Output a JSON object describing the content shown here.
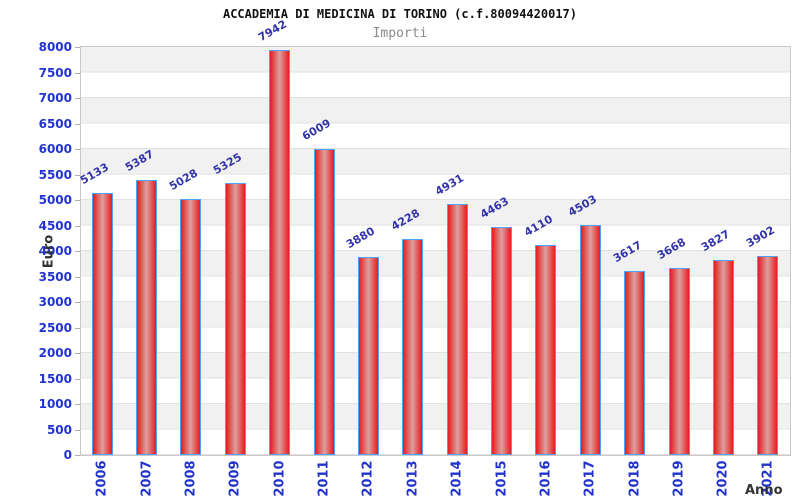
{
  "chart_data": {
    "type": "bar",
    "title": "ACCADEMIA DI MEDICINA DI TORINO (c.f.80094420017)",
    "subtitle": "Importi",
    "xlabel": "Anno",
    "ylabel": "Euro",
    "categories": [
      "2006",
      "2007",
      "2008",
      "2009",
      "2010",
      "2011",
      "2012",
      "2013",
      "2014",
      "2015",
      "2016",
      "2017",
      "2018",
      "2019",
      "2020",
      "2021"
    ],
    "values": [
      5133,
      5387,
      5028,
      5325,
      7942,
      6009,
      3880,
      4228,
      4931,
      4463,
      4110,
      4503,
      3617,
      3668,
      3827,
      3902
    ],
    "ylim": [
      0,
      8000
    ],
    "ytick_step": 500,
    "yticks": [
      0,
      500,
      1000,
      1500,
      2000,
      2500,
      3000,
      3500,
      4000,
      4500,
      5000,
      5500,
      6000,
      6500,
      7000,
      7500,
      8000
    ],
    "grid": "horizontal gridlines with alternating gray/white bands",
    "legend": "none",
    "bar_labels_rotated_deg": -30,
    "x_labels_rotated_deg": -90
  },
  "colors": {
    "bar_edge": "#e61b1b",
    "bar_center": "#dda0a0",
    "bar_border": "#4da3ff",
    "value_label": "#3333aa",
    "tick_label": "#2233cc",
    "axis_title": "#333333",
    "subtitle": "#8a8a8a",
    "band_gray": "#f1f1f1",
    "grid_line": "#e2e2e2",
    "plot_border": "#c9c9c9"
  }
}
